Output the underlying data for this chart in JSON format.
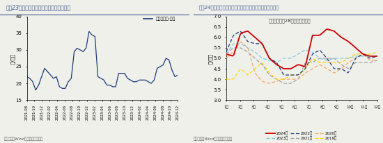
{
  "left_title": "图表23：近半月猪肉价格中枢环比延续回落",
  "left_ylabel": "元/公斤",
  "left_legend": "平均批发价:猪肉",
  "left_source": "资料来源：Wind，国盛证券研究所",
  "left_ylim": [
    15,
    40
  ],
  "left_yticks": [
    15,
    20,
    25,
    30,
    35,
    40
  ],
  "left_color": "#1A3A7A",
  "left_xticks": [
    "2021-08",
    "2021-10",
    "2021-12",
    "2022-02",
    "2022-04",
    "2022-06",
    "2022-08",
    "2022-10",
    "2022-12",
    "2023-02",
    "2023-04",
    "2023-06",
    "2023-08",
    "2023-10",
    "2023-12",
    "2024-02",
    "2024-04",
    "2024-06",
    "2024-08",
    "2024-10",
    "2024-12"
  ],
  "left_values": [
    22.0,
    21.5,
    20.5,
    18.0,
    19.5,
    22.0,
    24.5,
    23.5,
    22.5,
    21.5,
    22.0,
    19.0,
    18.5,
    18.5,
    20.5,
    21.5,
    29.5,
    30.5,
    30.0,
    29.5,
    30.5,
    35.5,
    34.5,
    34.0,
    22.0,
    21.5,
    21.0,
    19.5,
    19.5,
    19.0,
    19.0,
    23.0,
    23.0,
    23.0,
    21.5,
    21.0,
    20.5,
    20.5,
    21.0,
    21.0,
    21.0,
    20.5,
    20.0,
    21.0,
    24.5,
    25.0,
    25.5,
    27.5,
    27.0,
    24.0,
    22.0,
    22.5
  ],
  "right_title": "图表24：近半月蔬菜价格均值环比延续上涨，但弱于季节性",
  "right_ylabel": "元/公斤",
  "right_legend_title": "平均批发价：28种重点监测蔬菜",
  "right_source": "资料来源：Wind，国盛证券研究所",
  "right_ylim": [
    3.0,
    7.0
  ],
  "right_yticks": [
    3.0,
    3.5,
    4.0,
    4.5,
    5.0,
    5.5,
    6.0,
    6.5,
    7.0
  ],
  "right_xticks": [
    "1月",
    "2月",
    "3月",
    "4月",
    "5月",
    "6月",
    "7月",
    "8月",
    "9月",
    "10月",
    "11月",
    "12月"
  ],
  "y2024": [
    5.2,
    5.1,
    6.2,
    6.3,
    6.0,
    5.7,
    5.0,
    4.7,
    4.5,
    4.5,
    4.7,
    4.6,
    6.1,
    6.1,
    6.4,
    6.3,
    6.0,
    5.8,
    5.5,
    5.2,
    5.1,
    5.1
  ],
  "y2023": [
    5.2,
    5.7,
    5.7,
    5.5,
    5.3,
    5.0,
    4.9,
    4.8,
    5.0,
    5.0,
    5.2,
    5.4,
    5.3,
    5.0,
    4.9,
    5.0,
    5.0,
    5.0,
    5.1,
    5.1,
    5.1,
    5.1
  ],
  "y2022": [
    5.3,
    6.1,
    6.3,
    5.8,
    5.7,
    5.7,
    5.0,
    4.8,
    4.2,
    4.2,
    4.2,
    4.5,
    5.2,
    5.4,
    5.0,
    4.5,
    4.5,
    4.3,
    5.0,
    5.2,
    5.0,
    5.1
  ],
  "y2021": [
    5.2,
    5.5,
    5.5,
    5.3,
    5.0,
    4.7,
    4.2,
    4.0,
    3.8,
    3.8,
    4.0,
    4.8,
    4.8,
    5.0,
    5.0,
    5.0,
    4.7,
    4.5,
    4.8,
    4.8,
    4.8,
    4.9
  ],
  "y2020": [
    5.0,
    5.3,
    5.8,
    5.5,
    4.3,
    3.9,
    3.8,
    3.9,
    4.0,
    4.0,
    4.0,
    4.3,
    4.5,
    4.7,
    4.5,
    4.3,
    4.5,
    4.8,
    5.0,
    5.2,
    4.9,
    4.9
  ],
  "y2019": [
    4.0,
    4.0,
    4.5,
    4.2,
    4.5,
    4.8,
    4.3,
    4.0,
    4.0,
    4.2,
    4.2,
    4.5,
    5.0,
    4.8,
    4.8,
    4.8,
    4.8,
    5.0,
    5.2,
    5.2,
    5.2,
    5.3
  ],
  "color2024": "#CC0000",
  "color2023": "#7EC8E3",
  "color2022": "#1A3A7A",
  "color2021": "#A0A0A0",
  "color2020": "#F4A460",
  "color2019": "#FFD700",
  "title_bg": "#E8EAF0",
  "bg_color": "#F0F0EB",
  "title_color": "#2A4A8A",
  "title_border_color": "#2A4A8A"
}
